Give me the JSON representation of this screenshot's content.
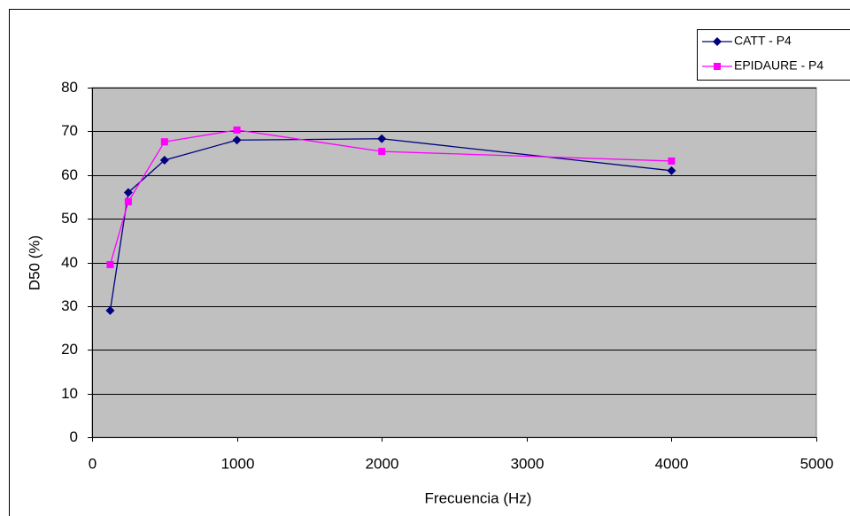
{
  "chart_data": {
    "type": "line",
    "x_label": "Frecuencia (Hz)",
    "y_label": "D50 (%)",
    "x": [
      125,
      250,
      500,
      1000,
      2000,
      4000
    ],
    "series": [
      {
        "name": "CATT - P4",
        "color": "#000080",
        "marker": "diamond",
        "values": [
          29,
          56,
          63.4,
          68,
          68.3,
          61
        ]
      },
      {
        "name": "EPIDAURE - P4",
        "color": "#ff00ff",
        "marker": "square",
        "values": [
          39.5,
          53.9,
          67.6,
          70.3,
          65.4,
          63.2
        ]
      }
    ],
    "xlim": [
      0,
      5000
    ],
    "xticks": [
      0,
      1000,
      2000,
      3000,
      4000,
      5000
    ],
    "ylim": [
      0,
      80
    ],
    "yticks": [
      0,
      10,
      20,
      30,
      40,
      50,
      60,
      70,
      80
    ],
    "grid": true,
    "plot_background": "#c0c0c0",
    "legend": "top-right"
  }
}
